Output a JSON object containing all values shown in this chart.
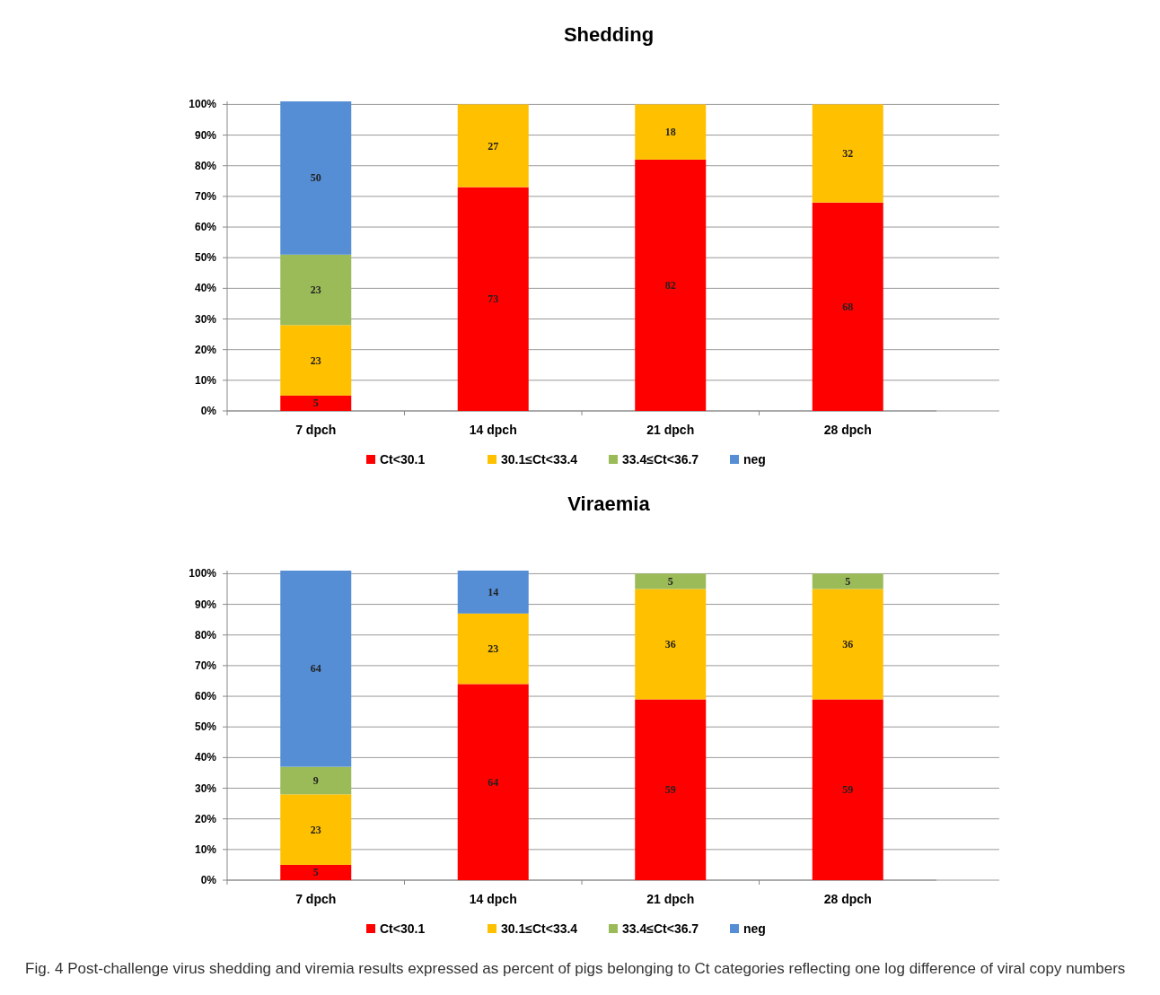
{
  "chart_data": [
    {
      "type": "bar",
      "title": "Shedding",
      "stacked": true,
      "categories": [
        "7 dpch",
        "14 dpch",
        "21 dpch",
        "28 dpch"
      ],
      "series": [
        {
          "name": "Ct<30.1",
          "color": "#ff0000",
          "values": [
            5,
            73,
            82,
            68
          ]
        },
        {
          "name": "30.1≤Ct<33.4",
          "color": "#ffc000",
          "values": [
            23,
            27,
            18,
            32
          ]
        },
        {
          "name": "33.4≤Ct<36.7",
          "color": "#9bbb59",
          "values": [
            23,
            null,
            null,
            null
          ]
        },
        {
          "name": "neg",
          "color": "#558ed5",
          "values": [
            50,
            null,
            null,
            null
          ]
        }
      ],
      "ylim": [
        0,
        101
      ],
      "yticks": [
        {
          "value": 0,
          "label": "0%"
        },
        {
          "value": 10,
          "label": "10%"
        },
        {
          "value": 20,
          "label": "20%"
        },
        {
          "value": 30,
          "label": "30%"
        },
        {
          "value": 40,
          "label": "40%"
        },
        {
          "value": 50,
          "label": "50%"
        },
        {
          "value": 60,
          "label": "60%"
        },
        {
          "value": 70,
          "label": "70%"
        },
        {
          "value": 80,
          "label": "80%"
        },
        {
          "value": 90,
          "label": "90%"
        },
        {
          "value": 100,
          "label": "100%"
        }
      ],
      "grid": "y",
      "legend": "bottom",
      "data_labels": true
    },
    {
      "type": "bar",
      "title": "Viraemia",
      "stacked": true,
      "categories": [
        "7 dpch",
        "14 dpch",
        "21 dpch",
        "28 dpch"
      ],
      "series": [
        {
          "name": "Ct<30.1",
          "color": "#ff0000",
          "values": [
            5,
            64,
            59,
            59
          ]
        },
        {
          "name": "30.1≤Ct<33.4",
          "color": "#ffc000",
          "values": [
            23,
            23,
            36,
            36
          ]
        },
        {
          "name": "33.4≤Ct<36.7",
          "color": "#9bbb59",
          "values": [
            9,
            null,
            5,
            5
          ]
        },
        {
          "name": "neg",
          "color": "#558ed5",
          "values": [
            64,
            14,
            null,
            null
          ]
        }
      ],
      "ylim": [
        0,
        101
      ],
      "yticks": [
        {
          "value": 0,
          "label": "0%"
        },
        {
          "value": 10,
          "label": "10%"
        },
        {
          "value": 20,
          "label": "20%"
        },
        {
          "value": 30,
          "label": "30%"
        },
        {
          "value": 40,
          "label": "40%"
        },
        {
          "value": 50,
          "label": "50%"
        },
        {
          "value": 60,
          "label": "60%"
        },
        {
          "value": 70,
          "label": "70%"
        },
        {
          "value": 80,
          "label": "80%"
        },
        {
          "value": 90,
          "label": "90%"
        },
        {
          "value": 100,
          "label": "100%"
        }
      ],
      "grid": "y",
      "legend": "bottom",
      "data_labels": true,
      "annotations": [
        "Fig. 4 Post-challenge virus shedding and viremia results expressed as percent of pigs belonging to Ct categories reflecting one log difference of viral copy numbers"
      ]
    }
  ]
}
